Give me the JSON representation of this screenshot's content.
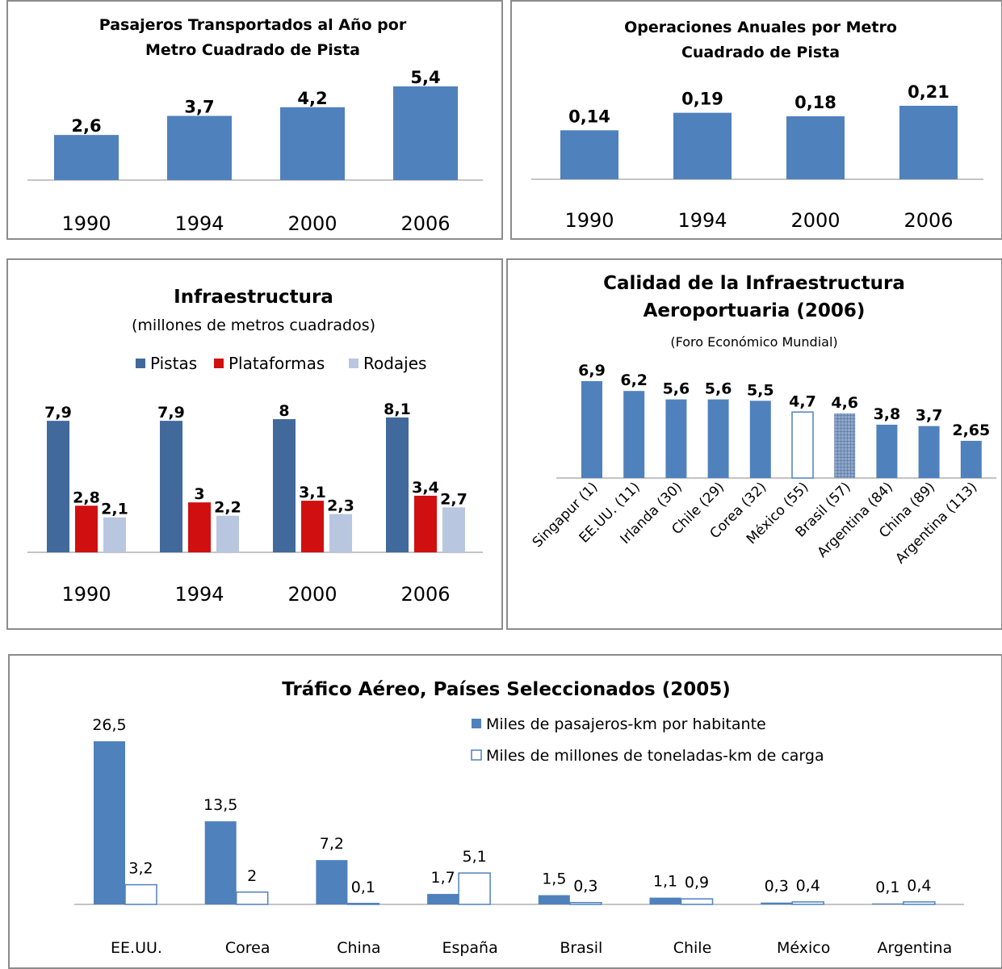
{
  "chart_data": [
    {
      "type": "bar",
      "title": "Pasajeros Transportados al Año por Metro Cuadrado de Pista",
      "title_lines": [
        "Pasajeros Transportados al Año por",
        "Metro Cuadrado de Pista"
      ],
      "categories": [
        "1990",
        "1994",
        "2000",
        "2006"
      ],
      "values": [
        2.6,
        3.7,
        4.2,
        5.4
      ],
      "value_labels": [
        "2,6",
        "3,7",
        "4,2",
        "5,4"
      ],
      "color": "#4f81bd",
      "ylim": [
        0,
        5.4
      ]
    },
    {
      "type": "bar",
      "title": "Operaciones Anuales por Metro Cuadrado de Pista",
      "title_lines": [
        "Operaciones Anuales por Metro",
        "Cuadrado de Pista"
      ],
      "categories": [
        "1990",
        "1994",
        "2000",
        "2006"
      ],
      "values": [
        0.14,
        0.19,
        0.18,
        0.21
      ],
      "value_labels": [
        "0,14",
        "0,19",
        "0,18",
        "0,21"
      ],
      "color": "#4f81bd",
      "ylim": [
        0,
        0.21
      ]
    },
    {
      "type": "bar",
      "title": "Infraestructura",
      "subtitle": "(millones de metros cuadrados)",
      "categories": [
        "1990",
        "1994",
        "2000",
        "2006"
      ],
      "legend_position": "top",
      "series": [
        {
          "name": "Pistas",
          "color": "#41699c",
          "values": [
            7.9,
            7.9,
            8,
            8.1
          ],
          "value_labels": [
            "7,9",
            "7,9",
            "8",
            "8,1"
          ]
        },
        {
          "name": "Plataformas",
          "color": "#d01010",
          "values": [
            2.8,
            3,
            3.1,
            3.4
          ],
          "value_labels": [
            "2,8",
            "3",
            "3,1",
            "3,4"
          ]
        },
        {
          "name": "Rodajes",
          "color": "#b8c6e0",
          "values": [
            2.1,
            2.2,
            2.3,
            2.7
          ],
          "value_labels": [
            "2,1",
            "2,2",
            "2,3",
            "2,7"
          ]
        }
      ],
      "ylim": [
        0,
        8.1
      ]
    },
    {
      "type": "bar",
      "title": "Calidad de la Infraestructura Aeroportuaria (2006)",
      "title_lines": [
        "Calidad de la Infraestructura",
        "Aeroportuaria (2006)"
      ],
      "subtitle": "(Foro Económico Mundial)",
      "categories": [
        "Singapur (1)",
        "EE.UU. (11)",
        "Irlanda (30)",
        "Chile (29)",
        "Corea (32)",
        "México (55)",
        "Brasil (57)",
        "Argentina (84)",
        "China (89)",
        "Argentina (113)"
      ],
      "values": [
        6.9,
        6.2,
        5.6,
        5.6,
        5.5,
        4.7,
        4.6,
        3.8,
        3.7,
        2.65
      ],
      "value_labels": [
        "6,9",
        "6,2",
        "5,6",
        "5,6",
        "5,5",
        "4,7",
        "4,6",
        "3,8",
        "3,7",
        "2,65"
      ],
      "bar_styles": [
        "solid",
        "solid",
        "solid",
        "solid",
        "solid",
        "outline",
        "pattern",
        "solid",
        "solid",
        "solid"
      ],
      "color": "#4f81bd",
      "ylim": [
        0,
        6.9
      ]
    },
    {
      "type": "bar",
      "title": "Tráfico Aéreo, Países Seleccionados (2005)",
      "categories": [
        "EE.UU.",
        "Corea",
        "China",
        "España",
        "Brasil",
        "Chile",
        "México",
        "Argentina"
      ],
      "legend_position": "top-right",
      "series": [
        {
          "name": "Miles de pasajeros-km por habitante",
          "style": "solid",
          "color": "#4f81bd",
          "values": [
            26.5,
            13.5,
            7.2,
            1.7,
            1.5,
            1.1,
            0.3,
            0.1
          ],
          "value_labels": [
            "26,5",
            "13,5",
            "7,2",
            "1,7",
            "1,5",
            "1,1",
            "0,3",
            "0,1"
          ]
        },
        {
          "name": "Miles de millones de toneladas-km de carga",
          "style": "outline",
          "color": "#4f81bd",
          "values": [
            3.2,
            2,
            0.1,
            5.1,
            0.3,
            0.9,
            0.4,
            0.4
          ],
          "value_labels": [
            "3,2",
            "2",
            "0,1",
            "5,1",
            "0,3",
            "0,9",
            "0,4",
            "0,4"
          ]
        }
      ],
      "ylim": [
        0,
        26.5
      ]
    }
  ]
}
